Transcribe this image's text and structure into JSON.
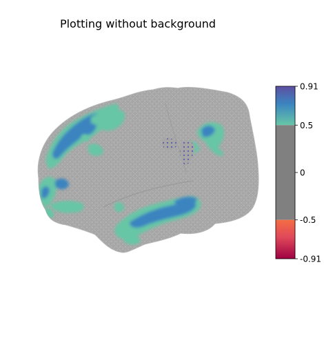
{
  "figure": {
    "title": "Plotting without background"
  },
  "colorbar": {
    "ticks": [
      {
        "value": 0.91,
        "label": "0.91"
      },
      {
        "value": 0.5,
        "label": "0.5"
      },
      {
        "value": 0,
        "label": "0"
      },
      {
        "value": -0.5,
        "label": "-0.5"
      },
      {
        "value": -0.91,
        "label": "-0.91"
      }
    ],
    "range": [
      -0.91,
      0.91
    ],
    "threshold": 0.5,
    "segments": [
      {
        "from": 0.5,
        "to": 0.91,
        "colors": [
          "#66c6a6",
          "#3b84c0",
          "#5e4fa2"
        ]
      },
      {
        "from": -0.5,
        "to": 0.5,
        "colors": [
          "#808080"
        ]
      },
      {
        "from": -0.91,
        "to": -0.5,
        "colors": [
          "#9e0142",
          "#e0485a",
          "#f46d43"
        ]
      }
    ]
  },
  "brain": {
    "view": "lateral",
    "surface_color": "#a6a6a6",
    "mesh_color": "#cfcfcf",
    "positive_colors": [
      "#66c6a6",
      "#3b84c0",
      "#5e4fa2"
    ]
  }
}
